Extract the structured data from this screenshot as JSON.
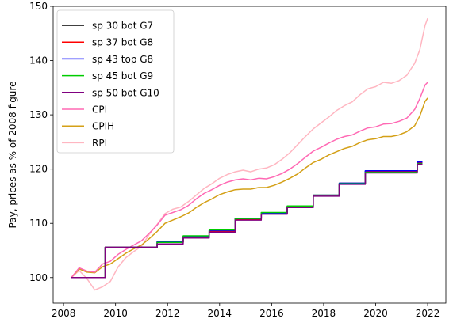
{
  "chart_data": {
    "type": "line",
    "title": "",
    "xlabel": "",
    "ylabel": "Pay, prices as % of 2008 figure",
    "xlim": [
      2007.6,
      2022.7
    ],
    "ylim": [
      95.3,
      150.0
    ],
    "xticks": [
      2008,
      2010,
      2012,
      2014,
      2016,
      2018,
      2020,
      2022
    ],
    "yticks": [
      100,
      110,
      120,
      130,
      140,
      150
    ],
    "grid": false,
    "legend_position": "top-left",
    "series": [
      {
        "name": "sp 30 bot G7",
        "color": "#000000",
        "step": true,
        "x": [
          2008.3,
          2009.6,
          2011.6,
          2012.6,
          2013.6,
          2014.6,
          2015.6,
          2016.6,
          2017.6,
          2018.6,
          2019.6,
          2021.6,
          2021.8
        ],
        "y": [
          100.0,
          105.6,
          106.6,
          107.6,
          108.7,
          110.9,
          111.9,
          113.1,
          115.2,
          117.4,
          119.6,
          121.3,
          121.3
        ]
      },
      {
        "name": "sp 37 bot G8",
        "color": "#ff0000",
        "step": true,
        "x": [
          2008.3,
          2009.6,
          2011.6,
          2012.6,
          2013.6,
          2014.6,
          2015.6,
          2016.6,
          2017.6,
          2018.6,
          2019.6,
          2021.6,
          2021.8
        ],
        "y": [
          100.0,
          105.6,
          106.5,
          107.5,
          108.6,
          110.8,
          111.8,
          113.0,
          115.1,
          117.3,
          119.5,
          121.2,
          121.2
        ]
      },
      {
        "name": "sp 43 top G8",
        "color": "#0000ff",
        "step": true,
        "x": [
          2008.3,
          2009.6,
          2011.6,
          2012.6,
          2013.6,
          2014.6,
          2015.6,
          2016.6,
          2017.6,
          2018.6,
          2019.6,
          2021.6,
          2021.8
        ],
        "y": [
          100.0,
          105.6,
          106.6,
          107.6,
          108.7,
          110.9,
          111.9,
          113.1,
          115.2,
          117.4,
          119.7,
          121.3,
          121.3
        ]
      },
      {
        "name": "sp 45 bot G9",
        "color": "#00cc00",
        "step": true,
        "x": [
          2008.3,
          2009.6,
          2011.6,
          2012.6,
          2013.6,
          2014.6,
          2015.6,
          2016.6,
          2017.6,
          2018.6,
          2019.6,
          2021.6,
          2021.8
        ],
        "y": [
          100.0,
          105.6,
          106.5,
          107.7,
          108.8,
          110.9,
          112.0,
          113.2,
          115.2,
          117.3,
          119.4,
          121.0,
          121.0
        ]
      },
      {
        "name": "sp 50 bot G10",
        "color": "#800080",
        "step": true,
        "x": [
          2008.3,
          2009.6,
          2011.6,
          2012.6,
          2013.6,
          2014.6,
          2015.6,
          2016.6,
          2017.6,
          2018.6,
          2019.6,
          2021.6,
          2021.8
        ],
        "y": [
          100.0,
          105.6,
          106.2,
          107.3,
          108.4,
          110.6,
          111.7,
          112.9,
          115.0,
          117.2,
          119.3,
          120.9,
          120.9
        ]
      },
      {
        "name": "CPI",
        "color": "#ff69b4",
        "step": false,
        "x": [
          2008.3,
          2008.6,
          2008.9,
          2009.2,
          2009.5,
          2009.8,
          2010.1,
          2010.4,
          2010.7,
          2011.0,
          2011.3,
          2011.6,
          2011.9,
          2012.2,
          2012.5,
          2012.8,
          2013.1,
          2013.4,
          2013.7,
          2014.0,
          2014.3,
          2014.6,
          2014.9,
          2015.2,
          2015.5,
          2015.8,
          2016.1,
          2016.4,
          2016.7,
          2017.0,
          2017.3,
          2017.6,
          2017.9,
          2018.2,
          2018.5,
          2018.8,
          2019.1,
          2019.4,
          2019.7,
          2020.0,
          2020.3,
          2020.6,
          2020.9,
          2021.2,
          2021.5,
          2021.7,
          2021.9,
          2022.0
        ],
        "y": [
          100.0,
          101.8,
          101.2,
          101.0,
          102.5,
          103.0,
          104.3,
          105.2,
          106.0,
          106.8,
          108.2,
          109.7,
          111.5,
          112.0,
          112.5,
          113.3,
          114.5,
          115.5,
          116.2,
          117.0,
          117.6,
          118.0,
          118.2,
          118.0,
          118.3,
          118.2,
          118.6,
          119.2,
          120.0,
          121.0,
          122.2,
          123.3,
          124.0,
          124.8,
          125.5,
          126.0,
          126.3,
          127.0,
          127.6,
          127.8,
          128.3,
          128.4,
          128.8,
          129.4,
          131.0,
          133.0,
          135.5,
          136.0
        ]
      },
      {
        "name": "CPIH",
        "color": "#d4a017",
        "step": false,
        "x": [
          2008.3,
          2008.6,
          2008.9,
          2009.2,
          2009.5,
          2009.8,
          2010.1,
          2010.4,
          2010.7,
          2011.0,
          2011.3,
          2011.6,
          2011.9,
          2012.2,
          2012.5,
          2012.8,
          2013.1,
          2013.4,
          2013.7,
          2014.0,
          2014.3,
          2014.6,
          2014.9,
          2015.2,
          2015.5,
          2015.8,
          2016.1,
          2016.4,
          2016.7,
          2017.0,
          2017.3,
          2017.6,
          2017.9,
          2018.2,
          2018.5,
          2018.8,
          2019.1,
          2019.4,
          2019.7,
          2020.0,
          2020.3,
          2020.6,
          2020.9,
          2021.2,
          2021.5,
          2021.7,
          2021.9,
          2022.0
        ],
        "y": [
          100.0,
          101.6,
          101.0,
          100.9,
          102.0,
          102.5,
          103.5,
          104.5,
          105.3,
          106.0,
          107.2,
          108.5,
          110.0,
          110.6,
          111.2,
          111.9,
          112.9,
          113.8,
          114.5,
          115.3,
          115.8,
          116.2,
          116.3,
          116.3,
          116.6,
          116.6,
          117.0,
          117.6,
          118.3,
          119.1,
          120.2,
          121.2,
          121.8,
          122.6,
          123.2,
          123.8,
          124.2,
          124.9,
          125.4,
          125.6,
          126.0,
          126.0,
          126.3,
          126.9,
          128.0,
          129.8,
          132.5,
          133.1
        ]
      },
      {
        "name": "RPI",
        "color": "#ffb6c1",
        "step": false,
        "x": [
          2008.3,
          2008.6,
          2008.9,
          2009.2,
          2009.5,
          2009.8,
          2010.1,
          2010.4,
          2010.7,
          2011.0,
          2011.3,
          2011.6,
          2011.9,
          2012.2,
          2012.5,
          2012.8,
          2013.1,
          2013.4,
          2013.7,
          2014.0,
          2014.3,
          2014.6,
          2014.9,
          2015.2,
          2015.5,
          2015.8,
          2016.1,
          2016.4,
          2016.7,
          2017.0,
          2017.3,
          2017.6,
          2017.9,
          2018.2,
          2018.5,
          2018.8,
          2019.1,
          2019.4,
          2019.7,
          2020.0,
          2020.3,
          2020.6,
          2020.9,
          2021.2,
          2021.5,
          2021.7,
          2021.9,
          2022.0
        ],
        "y": [
          100.0,
          101.3,
          99.8,
          97.7,
          98.3,
          99.3,
          102.0,
          103.7,
          104.8,
          105.8,
          108.0,
          109.8,
          111.8,
          112.6,
          113.0,
          114.0,
          115.2,
          116.4,
          117.3,
          118.3,
          119.0,
          119.5,
          119.8,
          119.5,
          120.0,
          120.2,
          120.8,
          121.8,
          123.0,
          124.5,
          126.0,
          127.4,
          128.5,
          129.6,
          130.8,
          131.7,
          132.4,
          133.7,
          134.8,
          135.2,
          136.0,
          135.8,
          136.3,
          137.3,
          139.5,
          142.0,
          146.5,
          147.8
        ]
      }
    ]
  }
}
